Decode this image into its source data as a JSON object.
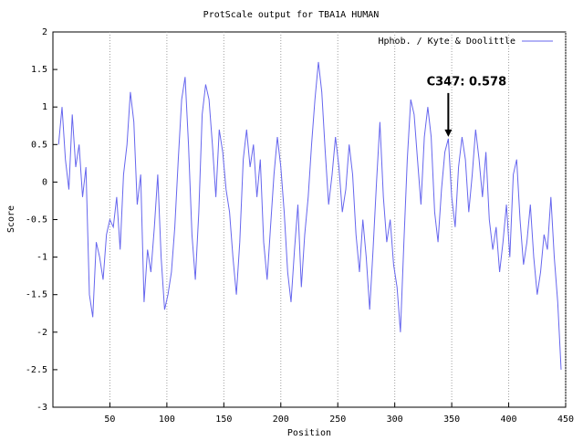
{
  "chart_data": {
    "type": "line",
    "title": "ProtScale output for TBA1A HUMAN",
    "x_label": "Position",
    "y_label": "Score",
    "xlim": [
      0,
      450
    ],
    "xticks": [
      50,
      100,
      150,
      200,
      250,
      300,
      350,
      400,
      450
    ],
    "ylim": [
      -3,
      2
    ],
    "yticks": [
      -3,
      -2.5,
      -2,
      -1.5,
      -1,
      -0.5,
      0,
      0.5,
      1,
      1.5,
      2
    ],
    "grid": true,
    "legend": "upper right",
    "annotation": {
      "text": "C347: 0.578",
      "x": 347,
      "y": 0.578
    },
    "x": [
      5,
      8,
      11,
      14,
      17,
      20,
      23,
      26,
      29,
      32,
      35,
      38,
      41,
      44,
      47,
      50,
      53,
      56,
      59,
      62,
      65,
      68,
      71,
      74,
      77,
      80,
      83,
      86,
      89,
      92,
      95,
      98,
      101,
      104,
      107,
      110,
      113,
      116,
      119,
      122,
      125,
      128,
      131,
      134,
      137,
      140,
      143,
      146,
      149,
      152,
      155,
      158,
      161,
      164,
      167,
      170,
      173,
      176,
      179,
      182,
      185,
      188,
      191,
      194,
      197,
      200,
      203,
      206,
      209,
      212,
      215,
      218,
      221,
      224,
      227,
      230,
      233,
      236,
      239,
      242,
      245,
      248,
      251,
      254,
      257,
      260,
      263,
      266,
      269,
      272,
      275,
      278,
      281,
      284,
      287,
      290,
      293,
      296,
      299,
      302,
      305,
      308,
      311,
      314,
      317,
      320,
      323,
      326,
      329,
      332,
      335,
      338,
      341,
      344,
      347,
      350,
      353,
      356,
      359,
      362,
      365,
      368,
      371,
      374,
      377,
      380,
      383,
      386,
      389,
      392,
      395,
      398,
      401,
      404,
      407,
      410,
      413,
      416,
      419,
      422,
      425,
      428,
      431,
      434,
      437,
      440,
      443,
      446
    ],
    "series": [
      {
        "name": "Hphob. / Kyte & Doolittle",
        "color": "#6666ee",
        "values": [
          0.5,
          1.0,
          0.3,
          -0.1,
          0.9,
          0.2,
          0.5,
          -0.2,
          0.2,
          -1.5,
          -1.8,
          -0.8,
          -1.0,
          -1.3,
          -0.7,
          -0.5,
          -0.6,
          -0.2,
          -0.9,
          0.1,
          0.5,
          1.2,
          0.8,
          -0.3,
          0.1,
          -1.6,
          -0.9,
          -1.2,
          -0.6,
          0.1,
          -1.0,
          -1.7,
          -1.5,
          -1.2,
          -0.6,
          0.3,
          1.1,
          1.4,
          0.5,
          -0.7,
          -1.3,
          -0.4,
          0.9,
          1.3,
          1.1,
          0.5,
          -0.2,
          0.7,
          0.4,
          -0.1,
          -0.4,
          -1.0,
          -1.5,
          -0.8,
          0.3,
          0.7,
          0.2,
          0.5,
          -0.2,
          0.3,
          -0.8,
          -1.3,
          -0.6,
          0.1,
          0.6,
          0.2,
          -0.4,
          -1.2,
          -1.6,
          -0.9,
          -0.3,
          -1.4,
          -0.7,
          -0.2,
          0.5,
          1.1,
          1.6,
          1.2,
          0.4,
          -0.3,
          0.1,
          0.6,
          0.2,
          -0.4,
          -0.1,
          0.5,
          0.1,
          -0.7,
          -1.2,
          -0.5,
          -1.0,
          -1.7,
          -0.9,
          0.0,
          0.8,
          -0.2,
          -0.8,
          -0.5,
          -1.1,
          -1.4,
          -2.0,
          -0.8,
          0.3,
          1.1,
          0.9,
          0.3,
          -0.3,
          0.6,
          1.0,
          0.6,
          -0.4,
          -0.8,
          -0.1,
          0.4,
          0.578,
          -0.2,
          -0.6,
          0.2,
          0.6,
          0.3,
          -0.4,
          0.1,
          0.7,
          0.3,
          -0.2,
          0.4,
          -0.5,
          -0.9,
          -0.6,
          -1.2,
          -0.8,
          -0.3,
          -1.0,
          0.1,
          0.3,
          -0.5,
          -1.1,
          -0.8,
          -0.3,
          -1.0,
          -1.5,
          -1.2,
          -0.7,
          -0.9,
          -0.2,
          -1.0,
          -1.6,
          -2.5
        ]
      }
    ]
  }
}
